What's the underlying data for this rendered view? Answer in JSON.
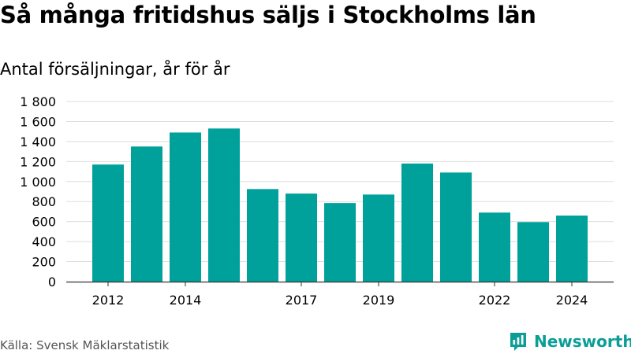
{
  "title": "Så många fritidshus säljs i Stockholms län",
  "subtitle": "Antal försäljningar, år för år",
  "source": "Källa: Svensk Mäklarstatistik",
  "brand": {
    "name": "Newsworthy",
    "icon": "newsworthy-logo-icon"
  },
  "colors": {
    "bar": "#00a19a",
    "grid": "#dddddd",
    "axis": "#333333",
    "brand": "#0b9e96"
  },
  "chart_data": {
    "type": "bar",
    "categories": [
      "2012",
      "2013",
      "2014",
      "2015",
      "2016",
      "2017",
      "2018",
      "2019",
      "2020",
      "2021",
      "2022",
      "2023",
      "2024"
    ],
    "values": [
      1170,
      1350,
      1490,
      1530,
      925,
      880,
      785,
      870,
      1180,
      1090,
      690,
      595,
      660
    ],
    "x_tick_labels": [
      "2012",
      "2014",
      "2017",
      "2019",
      "2022",
      "2024"
    ],
    "y_tick_labels": [
      "0",
      "200",
      "400",
      "600",
      "800",
      "1 000",
      "1 200",
      "1 400",
      "1 600",
      "1 800"
    ],
    "ylim": [
      0,
      1800
    ],
    "grid": true,
    "legend": "none"
  }
}
